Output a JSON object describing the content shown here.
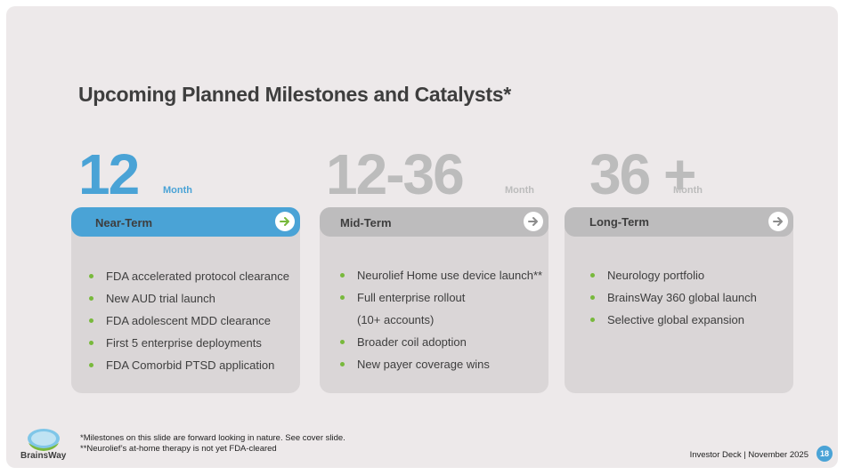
{
  "title": "Upcoming Planned Milestones and Catalysts*",
  "columns": [
    {
      "number": "12",
      "unit": "Month",
      "label": "Near-Term",
      "items": [
        "FDA accelerated protocol clearance",
        "New AUD trial launch",
        "FDA adolescent MDD clearance",
        "First 5 enterprise deployments",
        "FDA Comorbid PTSD application"
      ]
    },
    {
      "number": "12-36",
      "unit": "Month",
      "label": "Mid-Term",
      "items": [
        "Neurolief Home use device launch**",
        "Full enterprise rollout",
        "(10+ accounts)",
        "Broader coil adoption",
        "New payer coverage wins"
      ]
    },
    {
      "number": "36 +",
      "unit": "Month",
      "label": "Long-Term",
      "items": [
        "Neurology portfolio",
        "BrainsWay 360 global launch",
        "Selective global expansion"
      ]
    }
  ],
  "footnotes": [
    "*Milestones on this slide are forward looking in nature. See cover slide.",
    "**Neurolief’s at-home therapy is not yet FDA-cleared"
  ],
  "logo_text": "BrainsWay",
  "deck_label": "Investor Deck | November 2025",
  "page_number": "18",
  "colors": {
    "accent": "#4aa3d6",
    "bullet": "#78b93c",
    "muted": "#bcbcbc",
    "card": "#dad6d7"
  }
}
